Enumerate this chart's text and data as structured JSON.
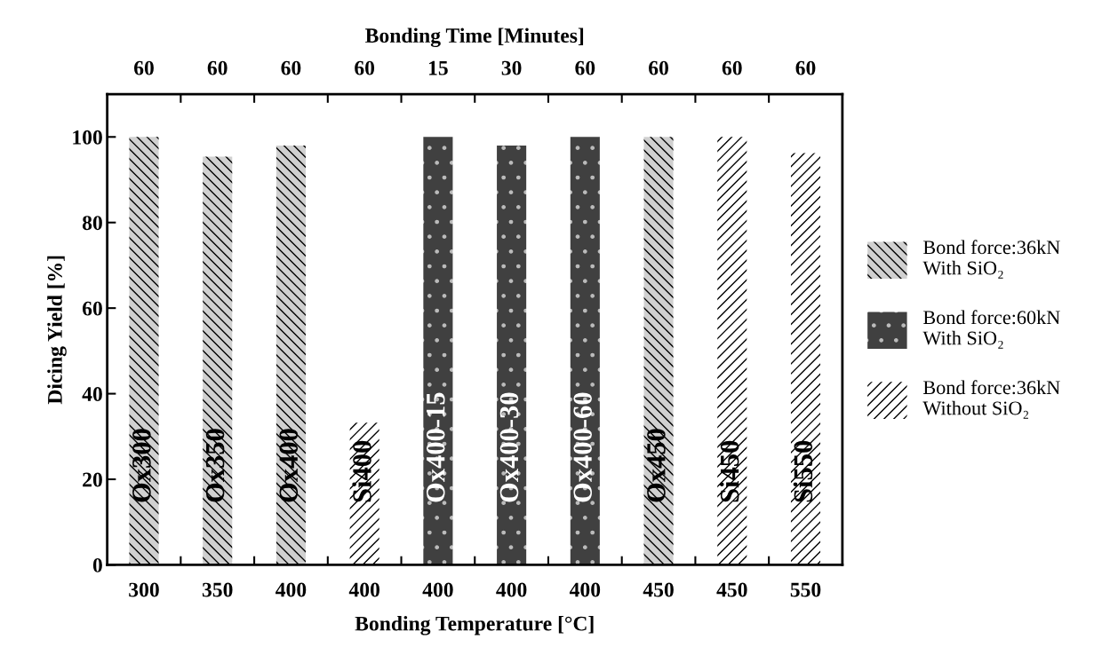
{
  "chart_data": {
    "type": "bar",
    "xlabel": "Bonding Temperature [°C]",
    "ylabel": "Dicing Yield [%]",
    "x2label": "Bonding Time [Minutes]",
    "categories": [
      "300",
      "350",
      "400",
      "400",
      "400",
      "400",
      "400",
      "450",
      "450",
      "550"
    ],
    "series": [
      {
        "name": "Bond force:36kN\nWith SiO₂",
        "color": "#d0d0d0",
        "values": [
          100,
          95.4,
          98.0,
          null,
          null,
          null,
          null,
          100,
          null,
          null
        ],
        "value_labels": [
          "Ox300",
          "Ox350",
          "Ox400",
          null,
          null,
          null,
          null,
          "Ox450",
          null,
          null
        ]
      },
      {
        "name": "Bond force:60kN\nWith SiO₂",
        "color": "#404040",
        "values": [
          null,
          null,
          null,
          null,
          100,
          98.0,
          100,
          null,
          null,
          null
        ],
        "value_labels": [
          null,
          null,
          null,
          null,
          "Ox400-15",
          "Ox400-30",
          "Ox400-60",
          null,
          null,
          null
        ]
      },
      {
        "name": "Bond force:36kN\nWithout SiO₂",
        "color": "#ffffff",
        "values": [
          null,
          null,
          null,
          33.2,
          null,
          null,
          null,
          null,
          100,
          96.2
        ],
        "value_labels": [
          null,
          null,
          null,
          "Si400",
          null,
          null,
          null,
          null,
          "Si450",
          "Si550"
        ]
      }
    ],
    "ylim": [
      0,
      110
    ],
    "yticks": [
      0,
      20,
      40,
      60,
      80,
      100
    ],
    "annotations": [
      "60",
      "60",
      "60",
      "60",
      "15",
      "30",
      "60",
      "60",
      "60",
      "60"
    ],
    "grid": false,
    "legend": "right"
  }
}
